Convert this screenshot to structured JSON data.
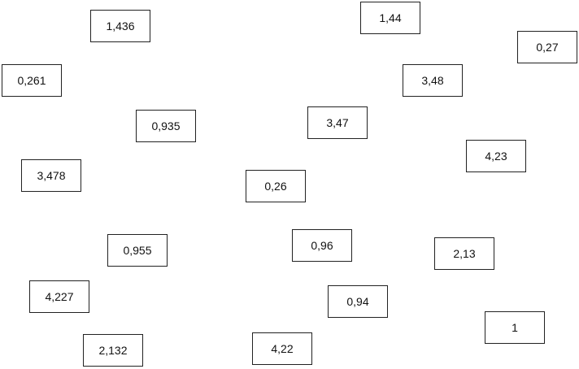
{
  "boxes": [
    {
      "label": "1,436"
    },
    {
      "label": "0,261"
    },
    {
      "label": "0,935"
    },
    {
      "label": "3,478"
    },
    {
      "label": "0,955"
    },
    {
      "label": "4,227"
    },
    {
      "label": "2,132"
    },
    {
      "label": "1,44"
    },
    {
      "label": "0,27"
    },
    {
      "label": "3,48"
    },
    {
      "label": "3,47"
    },
    {
      "label": "4,23"
    },
    {
      "label": "0,26"
    },
    {
      "label": "0,96"
    },
    {
      "label": "2,13"
    },
    {
      "label": "0,94"
    },
    {
      "label": "1"
    },
    {
      "label": "4,22"
    }
  ]
}
